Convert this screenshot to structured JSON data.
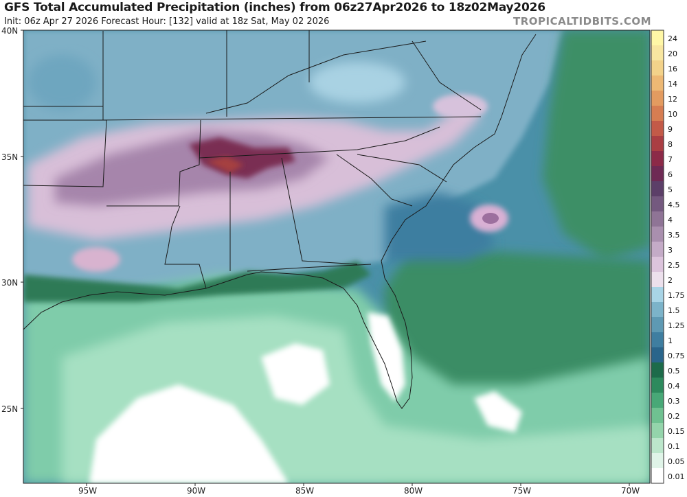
{
  "header": {
    "title": "GFS Total Accumulated Precipitation (inches) from 06z27Apr2026 to 18z02May2026",
    "subtitle": "Init: 06z Apr 27 2026   Forecast Hour: [132]   valid at 18z Sat, May 02 2026",
    "brand": "TROPICALTIDBITS.COM"
  },
  "axes": {
    "lat_labels": [
      "40N",
      "35N",
      "30N",
      "25N"
    ],
    "lon_labels": [
      "95W",
      "90W",
      "85W",
      "80W",
      "75W",
      "70W"
    ]
  },
  "colorbar": {
    "labels": [
      "24",
      "20",
      "16",
      "14",
      "12",
      "10",
      "9",
      "8",
      "7",
      "6",
      "5",
      "4.5",
      "4",
      "3.5",
      "3",
      "2.5",
      "2",
      "1.75",
      "1.5",
      "1.25",
      "1",
      "0.75",
      "0.5",
      "0.4",
      "0.3",
      "0.2",
      "0.15",
      "0.1",
      "0.05",
      "0.01"
    ],
    "colors": [
      "#fff7a6",
      "#f8e6a0",
      "#f3d28a",
      "#edb874",
      "#e39b60",
      "#d67d52",
      "#c35a48",
      "#aa3e43",
      "#8c2a48",
      "#6e2a54",
      "#5c3f68",
      "#74597f",
      "#8f7496",
      "#a98fae",
      "#c4abc7",
      "#dcc4dc",
      "#ece0ec",
      "#a8d4e6",
      "#7cb3c9",
      "#5e99b3",
      "#3f7ea0",
      "#2a658b",
      "#1d6b4a",
      "#2d8a5d",
      "#48a877",
      "#6fc191",
      "#94d4ab",
      "#bce6cb",
      "#e0f4e8",
      "#ffffff"
    ]
  },
  "map": {
    "ocean_color": "#3e8ea6",
    "gulf_color": "#8ed8b5",
    "max_precip_color": "#8c2a48"
  }
}
